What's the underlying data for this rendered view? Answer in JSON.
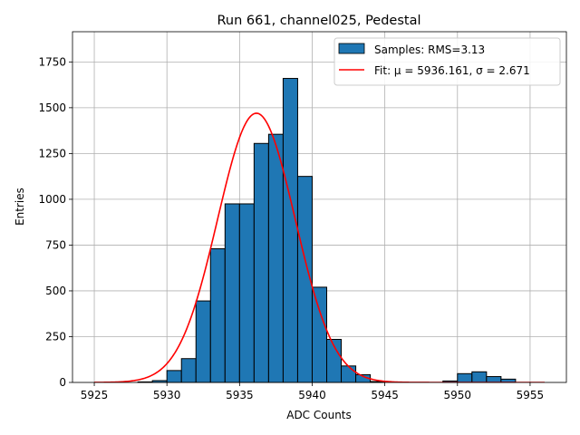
{
  "chart_data": {
    "type": "bar",
    "title": "Run 661, channel025, Pedestal",
    "xlabel": "ADC Counts",
    "ylabel": "Entries",
    "xlim": [
      5923.5,
      5957.5
    ],
    "ylim": [
      0,
      1915
    ],
    "xticks": [
      5925,
      5930,
      5935,
      5940,
      5945,
      5950,
      5955
    ],
    "yticks": [
      0,
      250,
      500,
      750,
      1000,
      1250,
      1500,
      1750
    ],
    "grid": true,
    "legend_position": "top-right",
    "histogram": {
      "name": "Samples: RMS=3.13",
      "color": "#1f77b4",
      "edge_color": "#000000",
      "bin_width": 1,
      "bins": [
        {
          "x0": 5928,
          "value": 3
        },
        {
          "x0": 5929,
          "value": 10
        },
        {
          "x0": 5930,
          "value": 65
        },
        {
          "x0": 5931,
          "value": 130
        },
        {
          "x0": 5932,
          "value": 445
        },
        {
          "x0": 5933,
          "value": 730
        },
        {
          "x0": 5934,
          "value": 975
        },
        {
          "x0": 5935,
          "value": 975
        },
        {
          "x0": 5936,
          "value": 1305
        },
        {
          "x0": 5937,
          "value": 1355
        },
        {
          "x0": 5938,
          "value": 1660
        },
        {
          "x0": 5939,
          "value": 1125
        },
        {
          "x0": 5940,
          "value": 520
        },
        {
          "x0": 5941,
          "value": 235
        },
        {
          "x0": 5942,
          "value": 90
        },
        {
          "x0": 5943,
          "value": 42
        },
        {
          "x0": 5944,
          "value": 5
        },
        {
          "x0": 5949,
          "value": 8
        },
        {
          "x0": 5950,
          "value": 48
        },
        {
          "x0": 5951,
          "value": 58
        },
        {
          "x0": 5952,
          "value": 32
        },
        {
          "x0": 5953,
          "value": 18
        }
      ]
    },
    "fit": {
      "name": "Fit: μ = 5936.161, σ = 2.671",
      "color": "#ff0000",
      "type": "gaussian",
      "mu": 5936.161,
      "sigma": 2.671,
      "amplitude": 1470,
      "x_range": [
        5925,
        5956
      ]
    }
  }
}
